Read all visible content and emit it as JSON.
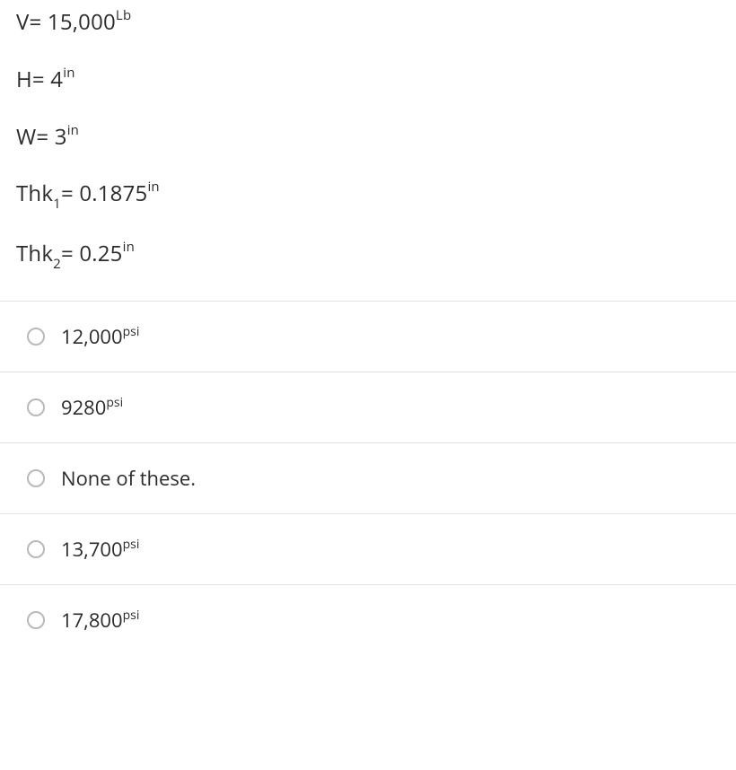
{
  "given": [
    {
      "var": "V",
      "eq": "=",
      "val": "15,000",
      "unit_sup": "Lb",
      "sub": ""
    },
    {
      "var": "H",
      "eq": "=",
      "val": "4",
      "unit_sup": "in",
      "sub": ""
    },
    {
      "var": "W",
      "eq": "=",
      "val": "3",
      "unit_sup": "in",
      "sub": ""
    },
    {
      "var": "Thk",
      "eq": "=",
      "val": "0.1875",
      "unit_sup": "in",
      "sub": "1"
    },
    {
      "var": "Thk",
      "eq": "=",
      "val": "0.25",
      "unit_sup": "in",
      "sub": "2"
    }
  ],
  "options": [
    {
      "val": "12,000",
      "unit_sup": "psi"
    },
    {
      "val": "9280",
      "unit_sup": "psi"
    },
    {
      "val": "None of these.",
      "unit_sup": ""
    },
    {
      "val": "13,700",
      "unit_sup": "psi"
    },
    {
      "val": "17,800",
      "unit_sup": "psi"
    }
  ],
  "colors": {
    "text": "#2b2b2b",
    "divider": "#e2e2e2",
    "radio_border": "#b9b9b9",
    "background": "#ffffff"
  }
}
